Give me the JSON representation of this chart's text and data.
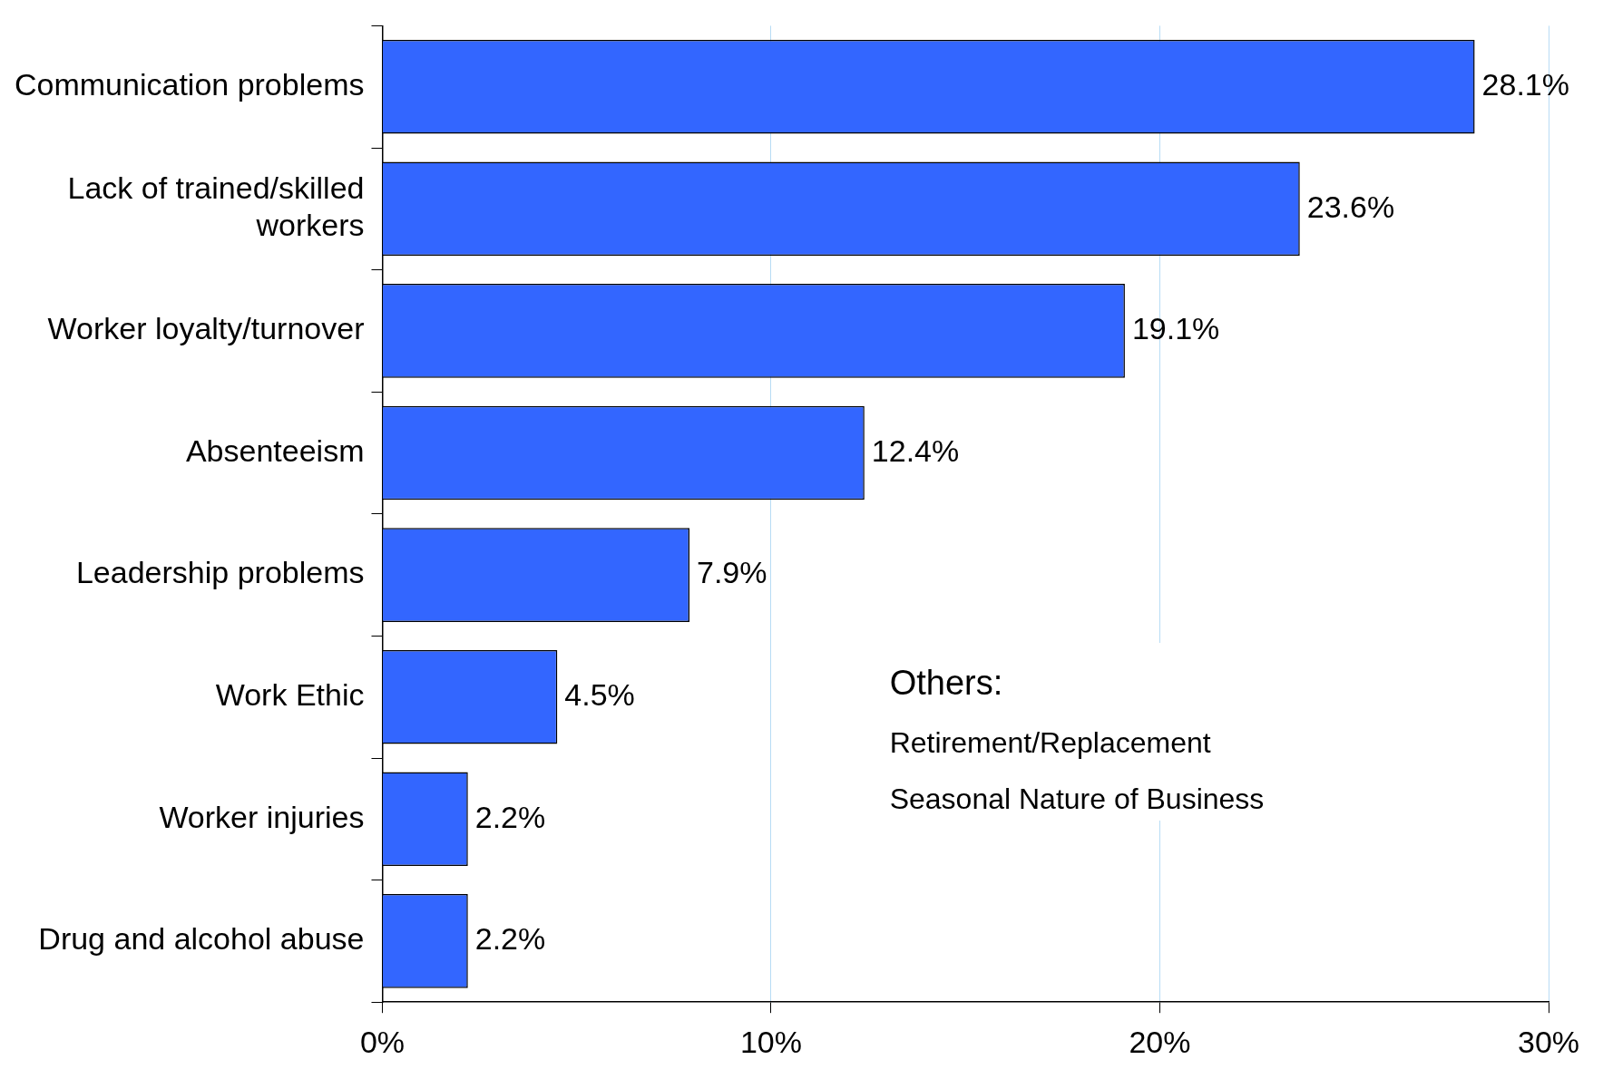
{
  "chart_data": {
    "type": "bar",
    "orientation": "horizontal",
    "categories": [
      "Communication problems",
      "Lack of trained/skilled workers",
      "Worker loyalty/turnover",
      "Absenteeism",
      "Leadership problems",
      "Work Ethic",
      "Worker injuries",
      "Drug and alcohol abuse"
    ],
    "values": [
      28.1,
      23.6,
      19.1,
      12.4,
      7.9,
      4.5,
      2.2,
      2.2
    ],
    "value_labels": [
      "28.1%",
      "23.6%",
      "19.1%",
      "12.4%",
      "7.9%",
      "4.5%",
      "2.2%",
      "2.2%"
    ],
    "color": "#3366ff",
    "xlim": [
      0,
      30
    ],
    "xticks": [
      {
        "value": 0,
        "label": "0%"
      },
      {
        "value": 10,
        "label": "10%"
      },
      {
        "value": 20,
        "label": "20%"
      },
      {
        "value": 30,
        "label": "30%"
      }
    ],
    "grid": "x",
    "legend": false,
    "annotations": [
      "Others:",
      "Retirement/Replacement",
      "Seasonal Nature of Business"
    ]
  }
}
